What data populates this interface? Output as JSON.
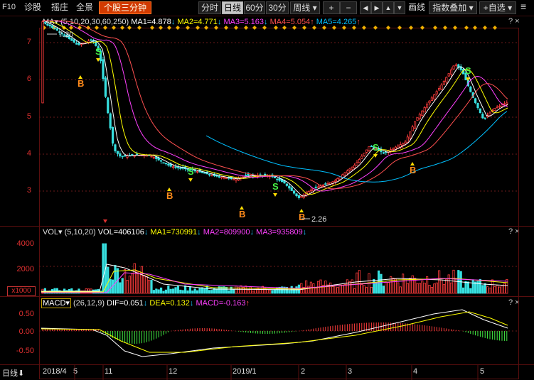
{
  "toolbar": {
    "f10": "F10",
    "items": [
      "诊股",
      "摇庄",
      "全景"
    ],
    "highlight": "个股三分钟",
    "periods": [
      "分时",
      "日线",
      "60分",
      "30分"
    ],
    "active_period": "日线",
    "week_label": "周线",
    "plus": "+",
    "minus": "−",
    "arrows": [
      "◀",
      "▶",
      "▲",
      "▼"
    ],
    "draw": "画线",
    "overlay": "指数叠加",
    "add_fav": "+自选",
    "menu": "≡"
  },
  "ma": {
    "name": "MA",
    "params": "(5,10,20,30,60,250)",
    "ma1": "MA1=4.878",
    "ma2": "MA2=4.771",
    "ma3": "MA3=5.163",
    "ma4": "MA4=5.054",
    "ma5": "MA5=4.265",
    "colors": {
      "ma1": "#ffffff",
      "ma2": "#ffff00",
      "ma3": "#ff40ff",
      "ma4": "#ff5050",
      "ma5": "#00c0ff"
    }
  },
  "price_axis": [
    "7",
    "6",
    "5",
    "4",
    "3"
  ],
  "price_markers": {
    "high": "7.20",
    "low": "2.26"
  },
  "signals": {
    "buy": "B",
    "sell": "S"
  },
  "vol": {
    "name": "VOL",
    "params": "(5,10,20)",
    "vol": "VOL=406106",
    "ma1": "MA1=730991",
    "ma2": "MA2=809900",
    "ma3": "MA3=935809",
    "axis": [
      "4000",
      "2000"
    ],
    "unit": "x1000"
  },
  "macd": {
    "name": "MACD",
    "params": "(26,12,9)",
    "dif": "DIF=0.051",
    "dea": "DEA=0.132",
    "macd": "MACD=-0.163",
    "axis": [
      "0.50",
      "0.00",
      "-0.50"
    ]
  },
  "qmarks": "? ×",
  "period_label": "日线",
  "dates": [
    "2018/4",
    "5",
    "11",
    "12",
    "2019/1",
    "2",
    "3",
    "4",
    "5"
  ]
}
